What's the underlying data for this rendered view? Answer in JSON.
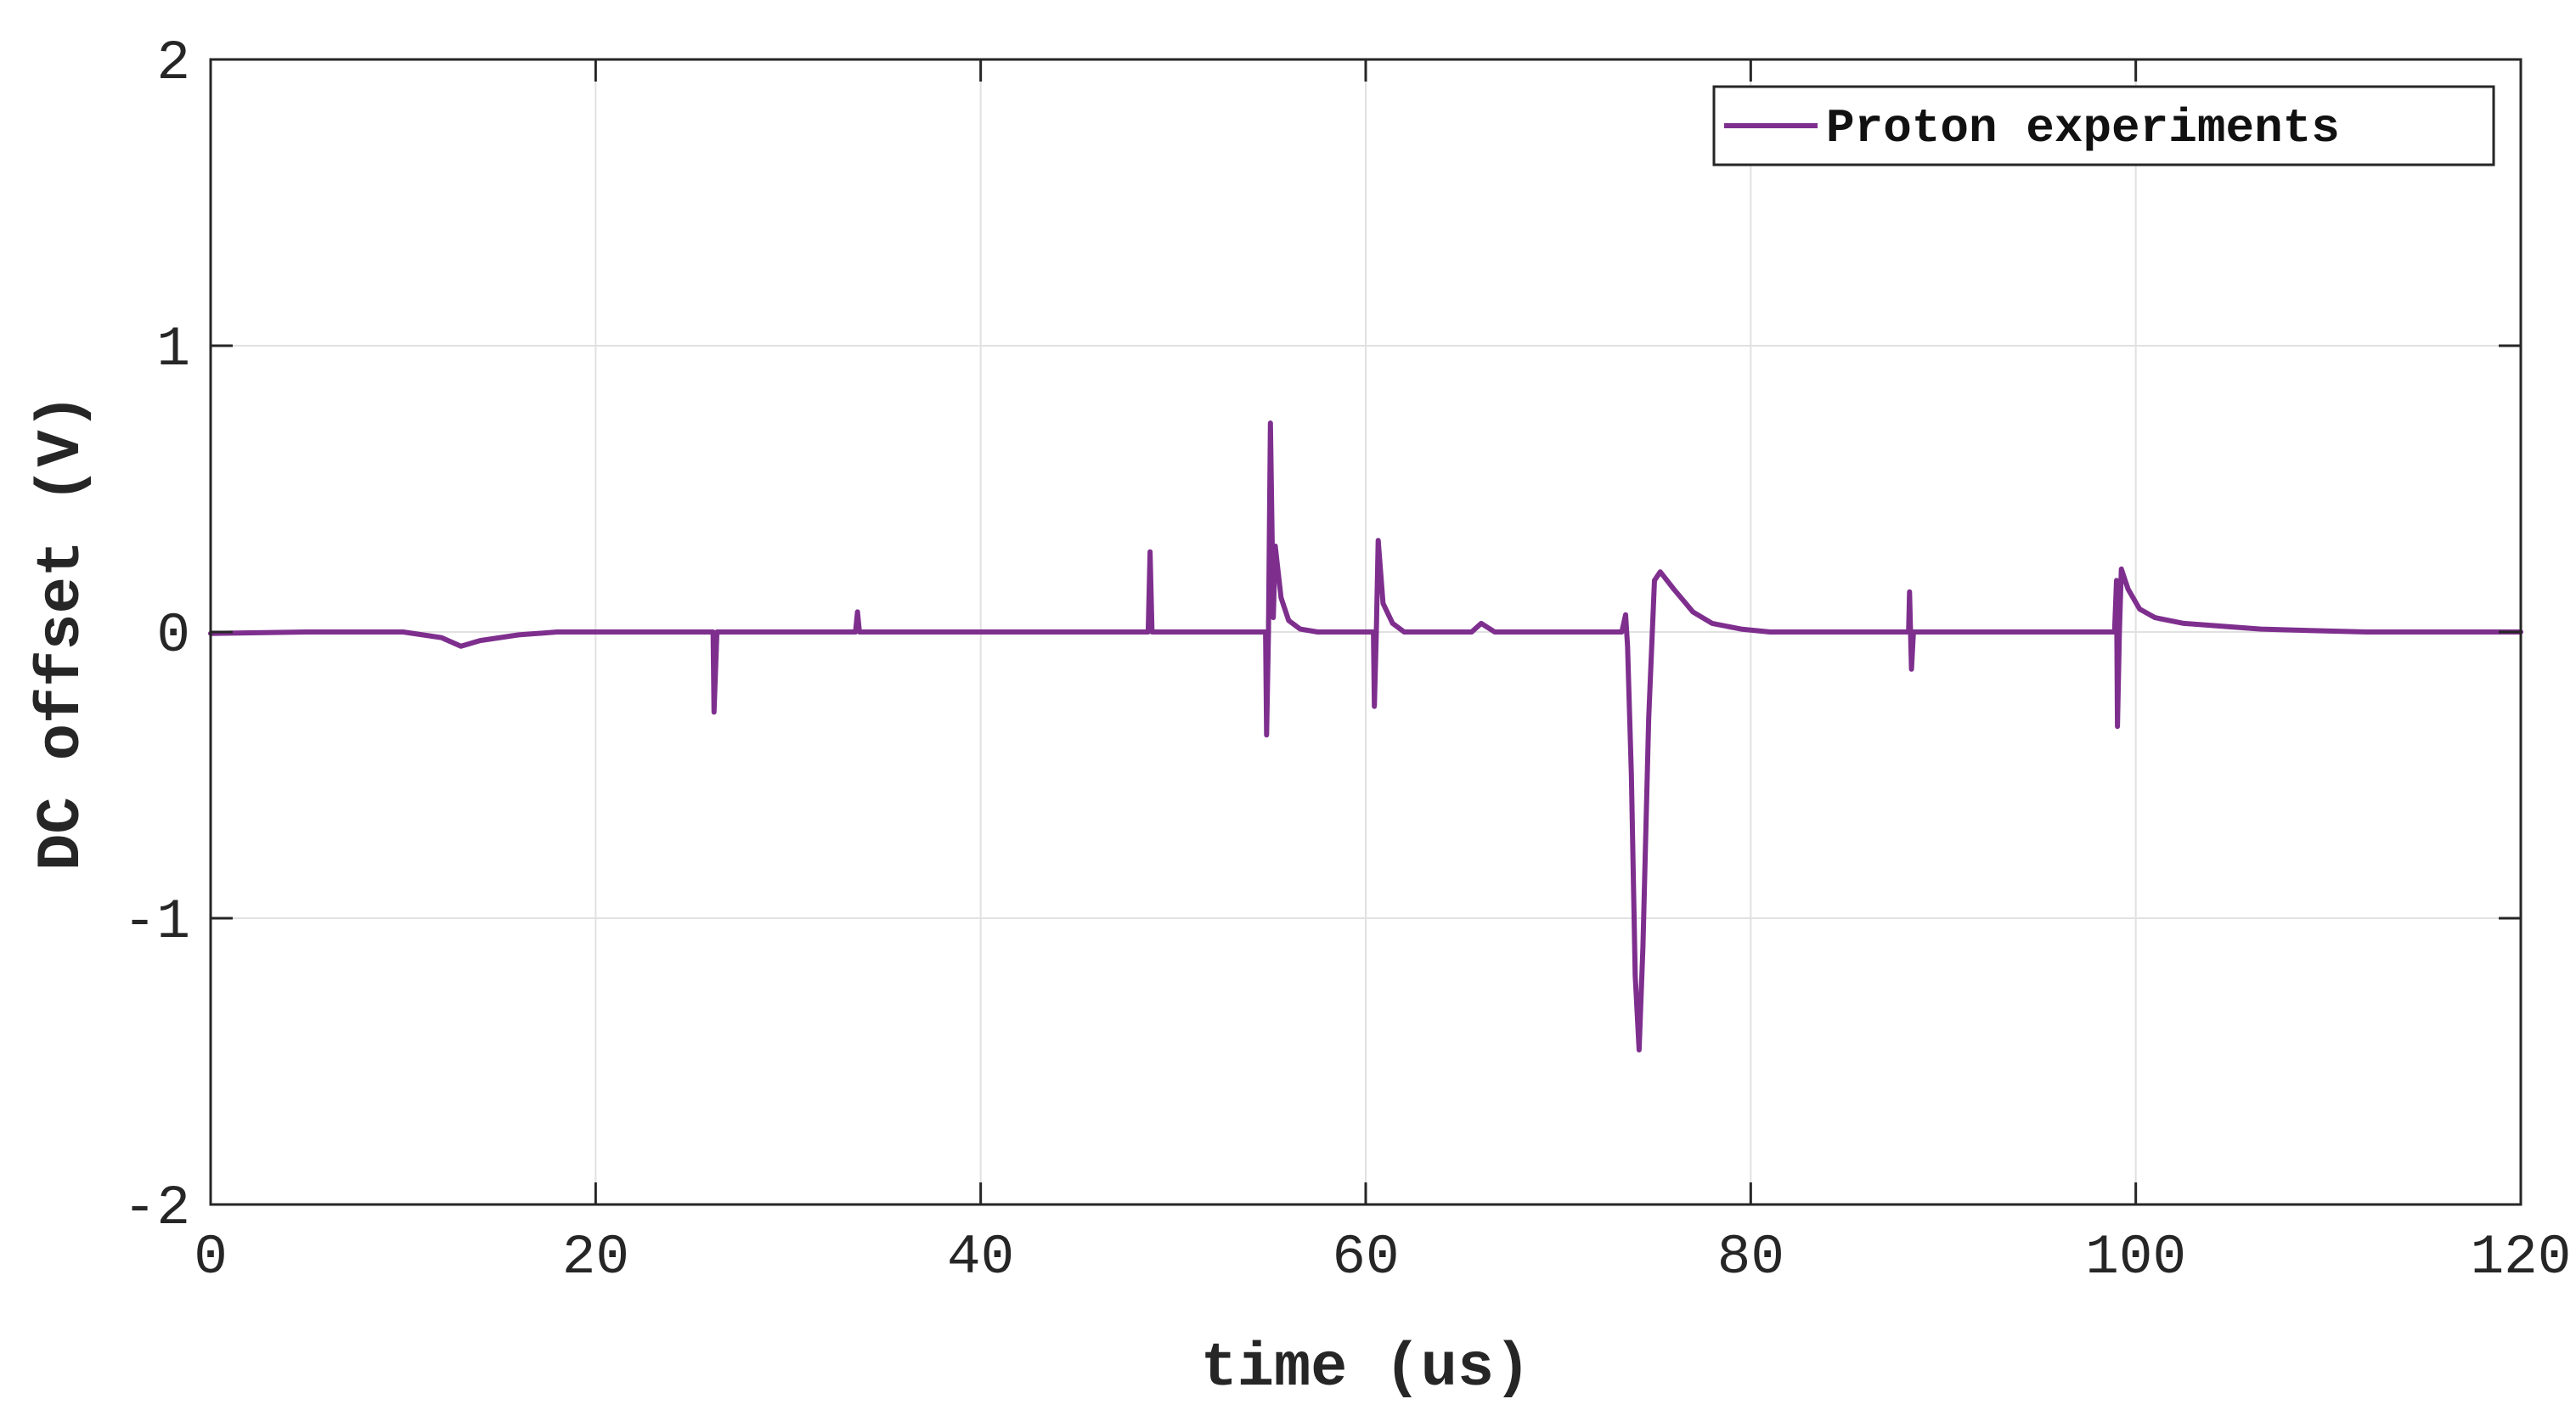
{
  "chart_data": {
    "type": "line",
    "xlabel": "time (us)",
    "ylabel": "DC offset (V)",
    "xlim": [
      0,
      120
    ],
    "ylim": [
      -2,
      2
    ],
    "xticks": [
      0,
      20,
      40,
      60,
      80,
      100,
      120
    ],
    "yticks": [
      -2,
      -1,
      0,
      1,
      2
    ],
    "grid": true,
    "legend_position": "top-right",
    "series": [
      {
        "name": "Proton experiments",
        "color": "#7e2f8e",
        "points": [
          [
            0,
            -0.005
          ],
          [
            5,
            0.0
          ],
          [
            10,
            0.0
          ],
          [
            12,
            -0.02
          ],
          [
            13,
            -0.05
          ],
          [
            14,
            -0.03
          ],
          [
            16,
            -0.01
          ],
          [
            18,
            0.0
          ],
          [
            22,
            0.0
          ],
          [
            26.1,
            0.0
          ],
          [
            26.15,
            -0.28
          ],
          [
            26.3,
            0.0
          ],
          [
            33.5,
            0.0
          ],
          [
            33.6,
            0.07
          ],
          [
            33.7,
            0.0
          ],
          [
            48.7,
            0.0
          ],
          [
            48.8,
            0.28
          ],
          [
            48.9,
            0.0
          ],
          [
            54.8,
            0.0
          ],
          [
            54.85,
            -0.36
          ],
          [
            54.95,
            0.0
          ],
          [
            55.05,
            0.73
          ],
          [
            55.2,
            0.05
          ],
          [
            55.3,
            0.3
          ],
          [
            55.6,
            0.12
          ],
          [
            56.0,
            0.04
          ],
          [
            56.6,
            0.01
          ],
          [
            57.5,
            0.0
          ],
          [
            60.4,
            0.0
          ],
          [
            60.45,
            -0.26
          ],
          [
            60.55,
            0.0
          ],
          [
            60.65,
            0.32
          ],
          [
            60.9,
            0.1
          ],
          [
            61.4,
            0.03
          ],
          [
            62.0,
            0.0
          ],
          [
            65.5,
            0.0
          ],
          [
            66.0,
            0.03
          ],
          [
            66.7,
            0.0
          ],
          [
            73.3,
            0.0
          ],
          [
            73.5,
            0.06
          ],
          [
            73.6,
            -0.05
          ],
          [
            73.8,
            -0.5
          ],
          [
            74.0,
            -1.2
          ],
          [
            74.2,
            -1.46
          ],
          [
            74.4,
            -1.1
          ],
          [
            74.7,
            -0.3
          ],
          [
            75.0,
            0.18
          ],
          [
            75.3,
            0.21
          ],
          [
            76.0,
            0.15
          ],
          [
            77.0,
            0.07
          ],
          [
            78.0,
            0.03
          ],
          [
            79.5,
            0.01
          ],
          [
            81.0,
            0.0
          ],
          [
            88.2,
            0.0
          ],
          [
            88.25,
            0.14
          ],
          [
            88.35,
            -0.13
          ],
          [
            88.45,
            0.0
          ],
          [
            98.9,
            0.0
          ],
          [
            99.0,
            0.18
          ],
          [
            99.05,
            -0.33
          ],
          [
            99.15,
            0.0
          ],
          [
            99.25,
            0.22
          ],
          [
            99.6,
            0.15
          ],
          [
            100.2,
            0.08
          ],
          [
            101.0,
            0.05
          ],
          [
            102.5,
            0.03
          ],
          [
            104.5,
            0.02
          ],
          [
            106.5,
            0.01
          ],
          [
            109.0,
            0.005
          ],
          [
            112.0,
            0.0
          ],
          [
            115.0,
            0.0
          ],
          [
            120.0,
            0.0
          ]
        ]
      }
    ]
  }
}
